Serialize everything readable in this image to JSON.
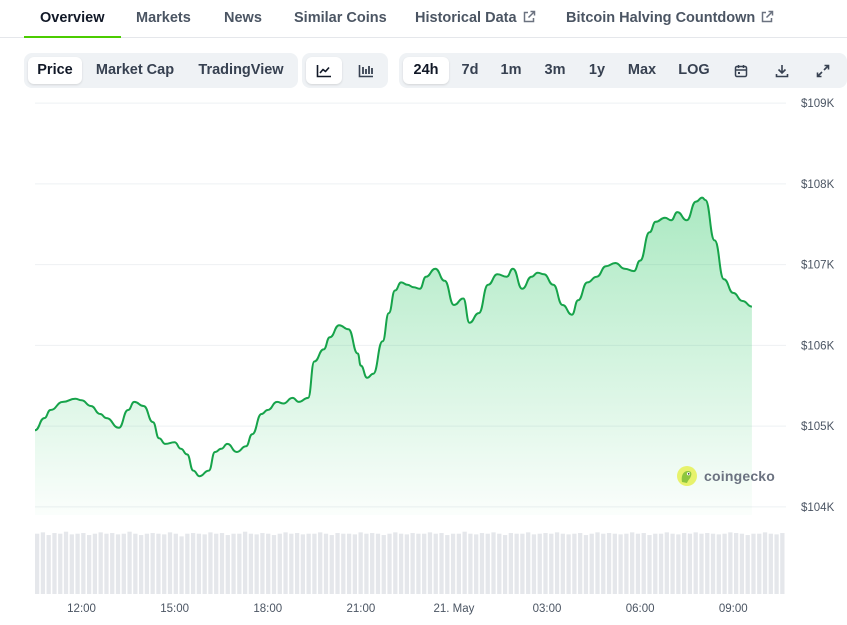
{
  "tabs": [
    {
      "label": "Overview",
      "active": true,
      "external": false
    },
    {
      "label": "Markets",
      "active": false,
      "external": false
    },
    {
      "label": "News",
      "active": false,
      "external": false
    },
    {
      "label": "Similar Coins",
      "active": false,
      "external": false
    },
    {
      "label": "Historical Data",
      "active": false,
      "external": true
    },
    {
      "label": "Bitcoin Halving Countdown",
      "active": false,
      "external": true
    }
  ],
  "toolbar": {
    "chart_kind": [
      {
        "label": "Price",
        "active": true
      },
      {
        "label": "Market Cap",
        "active": false
      },
      {
        "label": "TradingView",
        "active": false
      }
    ],
    "chart_style": [
      {
        "icon": "line-chart-icon",
        "active": true
      },
      {
        "icon": "candlestick-chart-icon",
        "active": false
      }
    ],
    "ranges": [
      {
        "label": "24h",
        "active": true
      },
      {
        "label": "7d",
        "active": false
      },
      {
        "label": "1m",
        "active": false
      },
      {
        "label": "3m",
        "active": false
      },
      {
        "label": "1y",
        "active": false
      },
      {
        "label": "Max",
        "active": false
      },
      {
        "label": "LOG",
        "active": false
      }
    ],
    "tools": [
      {
        "icon": "calendar-icon"
      },
      {
        "icon": "download-icon"
      },
      {
        "icon": "expand-icon"
      }
    ]
  },
  "watermark": {
    "text": "coingecko",
    "icon": "coingecko-logo-icon"
  },
  "colors": {
    "line": "#16a34a",
    "accent": "#4bcc00",
    "volume": "#e5e7eb",
    "grid": "#eef0f3"
  },
  "chart_data": {
    "type": "area",
    "title": "",
    "xlabel": "",
    "ylabel": "",
    "grid": true,
    "legend": "none",
    "ylim": [
      103900,
      109100
    ],
    "y_ticks": [
      {
        "value": 104000,
        "label": "$104K"
      },
      {
        "value": 105000,
        "label": "$105K"
      },
      {
        "value": 106000,
        "label": "$106K"
      },
      {
        "value": 107000,
        "label": "$107K"
      },
      {
        "value": 108000,
        "label": "$108K"
      },
      {
        "value": 109000,
        "label": "$109K"
      }
    ],
    "xlim": [
      10.5,
      34.7
    ],
    "x_ticks": [
      {
        "value": 12,
        "label": "12:00"
      },
      {
        "value": 15,
        "label": "15:00"
      },
      {
        "value": 18,
        "label": "18:00"
      },
      {
        "value": 21,
        "label": "21:00"
      },
      {
        "value": 24,
        "label": "21. May"
      },
      {
        "value": 27,
        "label": "03:00"
      },
      {
        "value": 30,
        "label": "06:00"
      },
      {
        "value": 33,
        "label": "09:00"
      }
    ],
    "series": [
      {
        "x": [
          10.5,
          10.8,
          11.0,
          11.4,
          11.8,
          12.0,
          12.3,
          12.6,
          12.8,
          13.2,
          13.5,
          13.7,
          14.0,
          14.3,
          14.5,
          14.7,
          15.0,
          15.2,
          15.4,
          15.6,
          15.8,
          16.1,
          16.3,
          16.5,
          16.7,
          17.0,
          17.3,
          17.5,
          17.8,
          18.0,
          18.3,
          18.5,
          18.8,
          19.0,
          19.3,
          19.5,
          19.8,
          20.0,
          20.3,
          20.6,
          20.9,
          21.0,
          21.2,
          21.4,
          21.7,
          21.9,
          22.1,
          22.3,
          22.5,
          22.7,
          22.9,
          23.1,
          23.4,
          23.7,
          24.0,
          24.3,
          24.5,
          24.8,
          25.1,
          25.4,
          25.7,
          25.9,
          26.2,
          26.5,
          26.7,
          26.9,
          27.2,
          27.5,
          27.8,
          28.0,
          28.3,
          28.6,
          28.9,
          29.2,
          29.5,
          29.8,
          30.0,
          30.3,
          30.5,
          30.8,
          31.0,
          31.2,
          31.5,
          31.8,
          32.0,
          32.1,
          32.4,
          32.7,
          33.0,
          33.3,
          33.6
        ],
        "y": [
          104950,
          105100,
          105200,
          105300,
          105340,
          105320,
          105250,
          105150,
          105100,
          104980,
          105200,
          105300,
          105250,
          105050,
          104850,
          104780,
          104800,
          104720,
          104650,
          104450,
          104380,
          104450,
          104680,
          104720,
          104780,
          104680,
          104750,
          104900,
          105150,
          105200,
          105300,
          105280,
          105350,
          105300,
          105350,
          105800,
          105950,
          106100,
          106250,
          106200,
          105900,
          105750,
          105600,
          105650,
          106050,
          106400,
          106680,
          106780,
          106750,
          106720,
          106700,
          106850,
          106950,
          106800,
          106500,
          106580,
          106280,
          106400,
          106750,
          106880,
          106850,
          106950,
          106700,
          106850,
          106900,
          106880,
          106750,
          106500,
          106380,
          106560,
          106780,
          106850,
          106980,
          107020,
          106950,
          106920,
          107050,
          107400,
          107530,
          107580,
          107550,
          107650,
          107550,
          107780,
          107830,
          107800,
          107300,
          106820,
          106650,
          106550,
          106480
        ]
      }
    ],
    "volume": {
      "x_start": 10.5,
      "x_end": 34.7,
      "values": [
        0.9,
        0.92,
        0.88,
        0.91,
        0.9,
        0.93,
        0.89,
        0.9,
        0.91,
        0.88,
        0.9,
        0.92,
        0.9,
        0.91,
        0.89,
        0.9,
        0.93,
        0.9,
        0.88,
        0.9,
        0.91,
        0.9,
        0.89,
        0.92,
        0.9,
        0.86,
        0.9,
        0.91,
        0.9,
        0.89,
        0.92,
        0.9,
        0.91,
        0.88,
        0.9,
        0.9,
        0.93,
        0.9,
        0.89,
        0.91,
        0.9,
        0.88,
        0.9,
        0.92,
        0.9,
        0.91,
        0.89,
        0.9,
        0.9,
        0.92,
        0.9,
        0.88,
        0.91,
        0.9,
        0.9,
        0.89,
        0.92,
        0.9,
        0.91,
        0.9,
        0.88,
        0.9,
        0.92,
        0.9,
        0.89,
        0.91,
        0.9,
        0.9,
        0.92,
        0.9,
        0.91,
        0.88,
        0.9,
        0.9,
        0.93,
        0.9,
        0.89,
        0.91,
        0.9,
        0.92,
        0.9,
        0.88,
        0.91,
        0.9,
        0.9,
        0.92,
        0.89,
        0.9,
        0.91,
        0.9,
        0.92,
        0.9,
        0.89,
        0.9,
        0.91,
        0.88,
        0.9,
        0.92,
        0.9,
        0.91,
        0.9,
        0.89,
        0.9,
        0.92,
        0.9,
        0.91,
        0.88,
        0.9,
        0.9,
        0.92,
        0.9,
        0.89,
        0.91,
        0.9,
        0.92,
        0.9,
        0.91,
        0.9,
        0.89,
        0.9,
        0.92,
        0.91,
        0.9,
        0.88,
        0.9,
        0.9,
        0.92,
        0.9,
        0.89,
        0.91
      ]
    }
  }
}
